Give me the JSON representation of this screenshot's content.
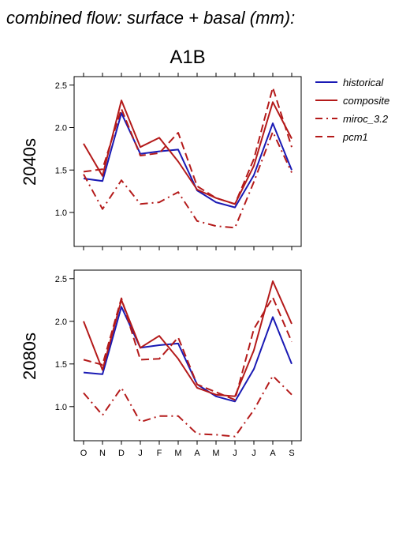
{
  "figure": {
    "title": "combined flow: surface + basal (mm):",
    "scenario": "A1B"
  },
  "legend": [
    {
      "label": "historical",
      "color": "#1a1ab4",
      "style": "solid"
    },
    {
      "label": "composite",
      "color": "#b41a1a",
      "style": "solid"
    },
    {
      "label": "miroc_3.2",
      "color": "#b41a1a",
      "style": "dashdot"
    },
    {
      "label": "pcm1",
      "color": "#b41a1a",
      "style": "dashed"
    }
  ],
  "chart_data": [
    {
      "type": "line",
      "panel_label": "2040s",
      "categories": [
        "O",
        "N",
        "D",
        "J",
        "F",
        "M",
        "A",
        "M",
        "J",
        "J",
        "A",
        "S"
      ],
      "ylim": [
        0.6,
        2.6
      ],
      "yticks": [
        "1.0",
        "1.5",
        "2.0",
        "2.5"
      ],
      "grid": false,
      "series": [
        {
          "name": "historical",
          "color": "#1a1ab4",
          "style": "solid",
          "values": [
            1.4,
            1.37,
            2.17,
            1.69,
            1.72,
            1.74,
            1.26,
            1.12,
            1.06,
            1.44,
            2.05,
            1.5
          ]
        },
        {
          "name": "composite",
          "color": "#b41a1a",
          "style": "solid",
          "values": [
            1.81,
            1.43,
            2.32,
            1.77,
            1.88,
            1.6,
            1.27,
            1.17,
            1.1,
            1.55,
            2.3,
            1.87
          ]
        },
        {
          "name": "miroc_3.2",
          "color": "#b41a1a",
          "style": "dashdot",
          "values": [
            1.45,
            1.04,
            1.38,
            1.1,
            1.12,
            1.24,
            0.9,
            0.84,
            0.82,
            1.36,
            1.95,
            1.47
          ]
        },
        {
          "name": "pcm1",
          "color": "#b41a1a",
          "style": "dashed",
          "values": [
            1.48,
            1.51,
            2.22,
            1.67,
            1.7,
            1.94,
            1.31,
            1.17,
            1.1,
            1.63,
            2.47,
            1.77
          ]
        }
      ]
    },
    {
      "type": "line",
      "panel_label": "2080s",
      "categories": [
        "O",
        "N",
        "D",
        "J",
        "F",
        "M",
        "A",
        "M",
        "J",
        "J",
        "A",
        "S"
      ],
      "ylim": [
        0.6,
        2.6
      ],
      "yticks": [
        "1.0",
        "1.5",
        "2.0",
        "2.5"
      ],
      "grid": false,
      "series": [
        {
          "name": "historical",
          "color": "#1a1ab4",
          "style": "solid",
          "values": [
            1.4,
            1.38,
            2.17,
            1.69,
            1.72,
            1.74,
            1.26,
            1.12,
            1.06,
            1.44,
            2.05,
            1.5
          ]
        },
        {
          "name": "composite",
          "color": "#b41a1a",
          "style": "solid",
          "values": [
            2.0,
            1.43,
            2.25,
            1.69,
            1.83,
            1.56,
            1.22,
            1.14,
            1.12,
            1.66,
            2.47,
            1.97
          ]
        },
        {
          "name": "miroc_3.2",
          "color": "#b41a1a",
          "style": "dashdot",
          "values": [
            1.16,
            0.9,
            1.22,
            0.82,
            0.89,
            0.89,
            0.68,
            0.67,
            0.65,
            0.96,
            1.36,
            1.14
          ]
        },
        {
          "name": "pcm1",
          "color": "#b41a1a",
          "style": "dashed",
          "values": [
            1.55,
            1.49,
            2.27,
            1.55,
            1.56,
            1.81,
            1.26,
            1.17,
            1.08,
            1.91,
            2.28,
            1.76
          ]
        }
      ]
    }
  ]
}
